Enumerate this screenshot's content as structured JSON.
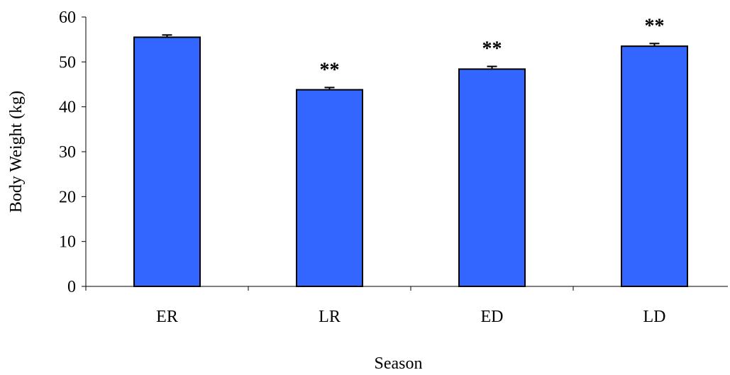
{
  "chart_data": {
    "type": "bar",
    "title": "",
    "xlabel": "Season",
    "ylabel": "Body Weight (kg)",
    "ylim": [
      0,
      60
    ],
    "yticks": [
      0,
      10,
      20,
      30,
      40,
      50,
      60
    ],
    "ytick_labels": [
      "0",
      "10",
      "20",
      "30",
      "40",
      "50",
      "60"
    ],
    "categories": [
      "ER",
      "LR",
      "ED",
      "LD"
    ],
    "values": [
      55.5,
      43.8,
      48.4,
      53.5
    ],
    "error": [
      0.5,
      0.5,
      0.6,
      0.6
    ],
    "annotations": [
      "",
      "**",
      "**",
      "**"
    ],
    "grid": false,
    "legend": "none",
    "colors": {
      "bar_fill": "#3366FF",
      "bar_stroke": "#000000",
      "axis": "#000000"
    }
  }
}
